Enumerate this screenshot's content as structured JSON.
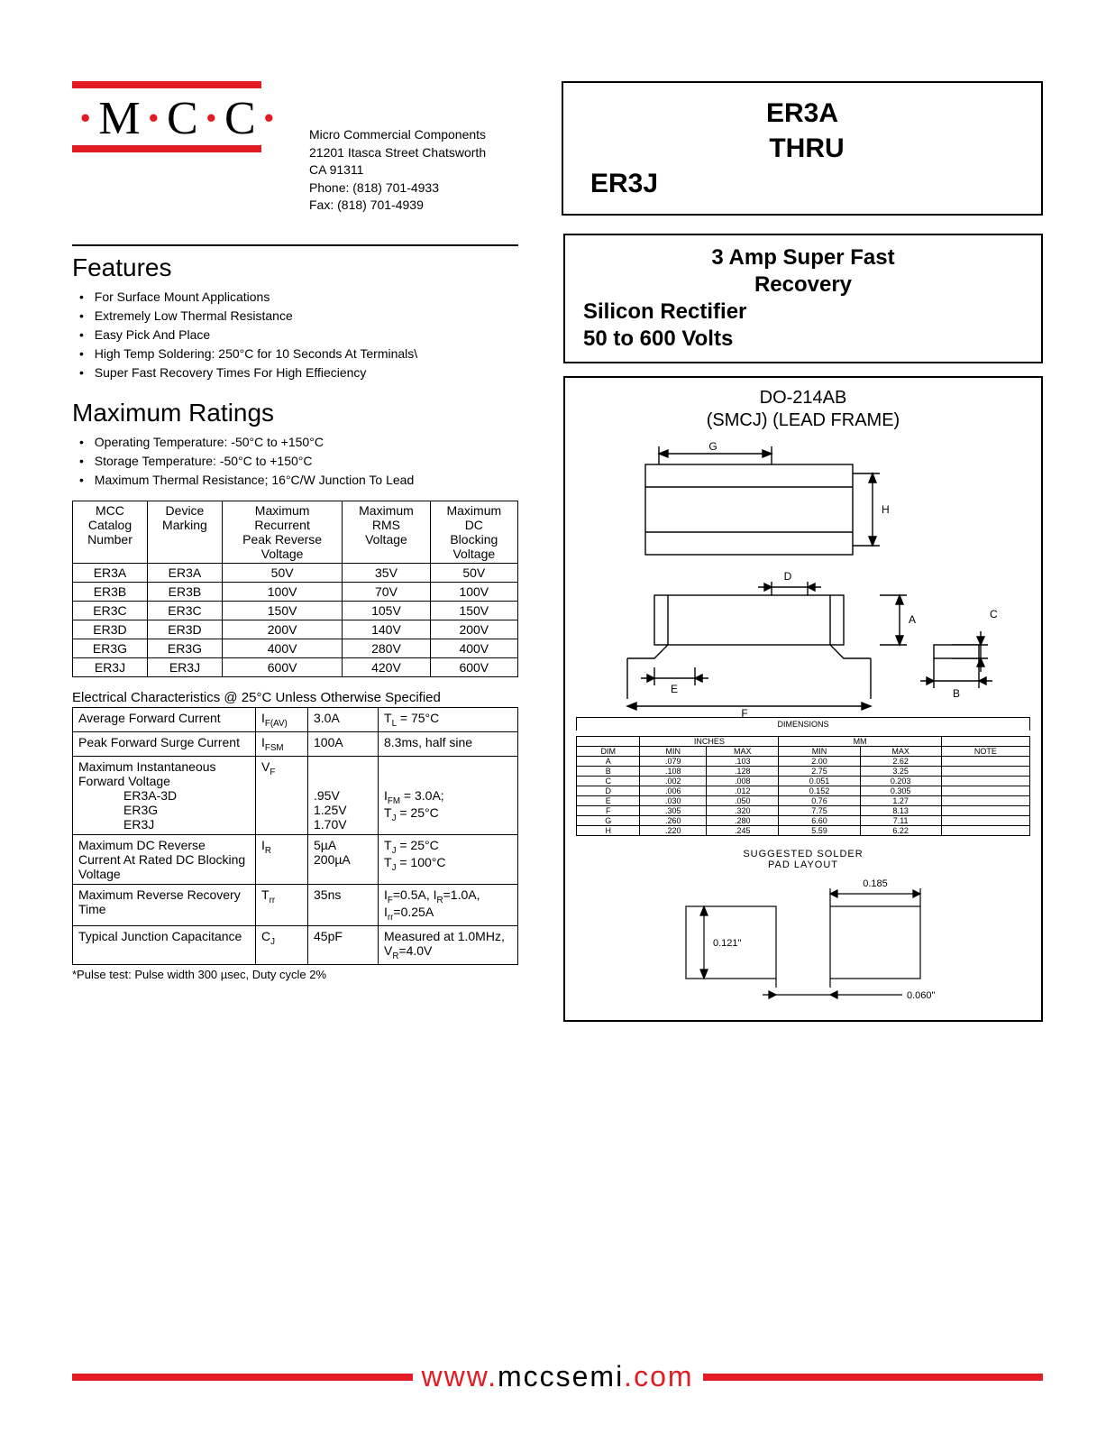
{
  "logo_text_html": "<span class='dot'>·</span>M<span class='dot'>·</span>C<span class='dot'>·</span>C<span class='dot'>·</span>",
  "address": {
    "l1": "Micro Commercial Components",
    "l2": "21201 Itasca Street Chatsworth",
    "l3": "CA 91311",
    "l4": "Phone: (818) 701-4933",
    "l5": "Fax:     (818) 701-4939"
  },
  "part_title": {
    "l1": "ER3A",
    "l2": "THRU",
    "l3": "ER3J"
  },
  "features_heading": "Features",
  "features": [
    "For Surface Mount Applications",
    "Extremely Low Thermal Resistance",
    "Easy Pick And Place",
    "High Temp Soldering: 250°C for 10 Seconds At Terminals\\",
    "Super Fast Recovery Times For High Effieciency"
  ],
  "desc": {
    "l1": "3 Amp Super Fast",
    "l2": "Recovery",
    "l3": "Silicon Rectifier",
    "l4": "50 to 600 Volts"
  },
  "pkg_title_l1": "DO-214AB",
  "pkg_title_l2": "(SMCJ) (LEAD FRAME)",
  "maxratings_heading": "Maximum Ratings",
  "maxratings_bullets": [
    "Operating Temperature: -50°C to +150°C",
    "Storage Temperature: -50°C to +150°C",
    "Maximum Thermal Resistance; 16°C/W Junction To Lead"
  ],
  "ratings_table": {
    "headers": [
      "MCC\nCatalog\nNumber",
      "Device\nMarking",
      "Maximum\nRecurrent\nPeak Reverse\nVoltage",
      "Maximum\nRMS\nVoltage",
      "Maximum\nDC\nBlocking\nVoltage"
    ],
    "rows": [
      [
        "ER3A",
        "ER3A",
        "50V",
        "35V",
        "50V"
      ],
      [
        "ER3B",
        "ER3B",
        "100V",
        "70V",
        "100V"
      ],
      [
        "ER3C",
        "ER3C",
        "150V",
        "105V",
        "150V"
      ],
      [
        "ER3D",
        "ER3D",
        "200V",
        "140V",
        "200V"
      ],
      [
        "ER3G",
        "ER3G",
        "400V",
        "280V",
        "400V"
      ],
      [
        "ER3J",
        "ER3J",
        "600V",
        "420V",
        "600V"
      ]
    ]
  },
  "elec_title": "Electrical Characteristics @ 25°C Unless Otherwise Specified",
  "elec_rows": [
    {
      "param": "Average Forward Current",
      "sym": "I<sub>F(AV)</sub>",
      "val": "3.0A",
      "cond": "T<sub>L</sub> = 75°C"
    },
    {
      "param": "Peak Forward Surge Current",
      "sym": "I<sub>FSM</sub>",
      "val": "100A",
      "cond": "8.3ms, half sine"
    },
    {
      "param": "Maximum Instantaneous Forward Voltage<span class='sub-label'>ER3A-3D</span><span class='sub-label'>ER3G</span><span class='sub-label'>ER3J</span>",
      "sym": "V<sub>F</sub>",
      "val": "<br><br>.95V<br>1.25V<br>1.70V",
      "cond": "<br><br>I<sub>FM</sub> = 3.0A;<br>T<sub>J</sub> = 25°C"
    },
    {
      "param": "Maximum DC Reverse Current At Rated DC Blocking Voltage",
      "sym": "I<sub>R</sub>",
      "val": "5µA<br>200µA",
      "cond": "T<sub>J</sub> = 25°C<br>T<sub>J</sub> = 100°C"
    },
    {
      "param": "Maximum Reverse Recovery Time",
      "sym": "T<sub>rr</sub>",
      "val": "35ns",
      "cond": "I<sub>F</sub>=0.5A, I<sub>R</sub>=1.0A,<br>I<sub>rr</sub>=0.25A"
    },
    {
      "param": "Typical Junction Capacitance",
      "sym": "C<sub>J</sub>",
      "val": "45pF",
      "cond": "Measured at 1.0MHz, V<sub>R</sub>=4.0V"
    }
  ],
  "footnote": "*Pulse test: Pulse width 300 µsec, Duty cycle 2%",
  "dims_table": {
    "caption": "DIMENSIONS",
    "group_headers": [
      "",
      "INCHES",
      "MM",
      ""
    ],
    "col_headers": [
      "DIM",
      "MIN",
      "MAX",
      "MIN",
      "MAX",
      "NOTE"
    ],
    "rows": [
      [
        "A",
        ".079",
        ".103",
        "2.00",
        "2.62",
        ""
      ],
      [
        "B",
        ".108",
        ".128",
        "2.75",
        "3.25",
        ""
      ],
      [
        "C",
        ".002",
        ".008",
        "0.051",
        "0.203",
        ""
      ],
      [
        "D",
        ".006",
        ".012",
        "0.152",
        "0.305",
        ""
      ],
      [
        "E",
        ".030",
        ".050",
        "0.76",
        "1.27",
        ""
      ],
      [
        "F",
        ".305",
        ".320",
        "7.75",
        "8.13",
        ""
      ],
      [
        "G",
        ".260",
        ".280",
        "6.60",
        "7.11",
        ""
      ],
      [
        "H",
        ".220",
        ".245",
        "5.59",
        "6.22",
        ""
      ]
    ]
  },
  "solder_title": "SUGGESTED SOLDER\nPAD LAYOUT",
  "solder_dims": {
    "w": "0.185",
    "h": "0.121\"",
    "gap": "0.060\""
  },
  "footer_url": {
    "p1": "www.",
    "p2": "mccsemi",
    "p3": ".com"
  }
}
